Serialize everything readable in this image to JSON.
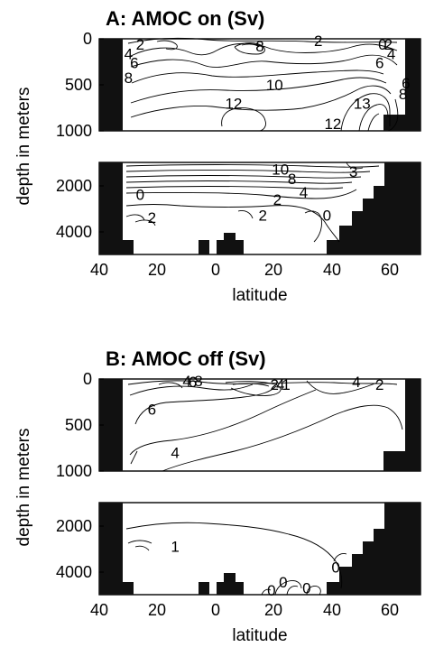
{
  "chart_data": [
    {
      "type": "contour",
      "title": "A: AMOC on (Sv)",
      "xlabel": "latitude",
      "ylabel": "depth in meters",
      "x_range": [
        -40,
        70
      ],
      "x_ticks": [
        "40",
        "20",
        "0",
        "20",
        "40",
        "60"
      ],
      "upper_depth_range": [
        0,
        1000
      ],
      "upper_ticks": [
        "0",
        "500",
        "1000"
      ],
      "lower_depth_range": [
        1000,
        5000
      ],
      "lower_ticks": [
        "2000",
        "4000"
      ],
      "contour_labels": [
        {
          "text": "2",
          "lat": -26,
          "depth": 60
        },
        {
          "text": "4",
          "lat": -30,
          "depth": 160
        },
        {
          "text": "6",
          "lat": -28,
          "depth": 260
        },
        {
          "text": "8",
          "lat": -30,
          "depth": 420
        },
        {
          "text": "8",
          "lat": 15,
          "depth": 80
        },
        {
          "text": "2",
          "lat": 35,
          "depth": 20
        },
        {
          "text": "0",
          "lat": 57,
          "depth": 60
        },
        {
          "text": "2",
          "lat": 59,
          "depth": 60
        },
        {
          "text": "4",
          "lat": 60,
          "depth": 160
        },
        {
          "text": "6",
          "lat": 56,
          "depth": 260
        },
        {
          "text": "10",
          "lat": 20,
          "depth": 500
        },
        {
          "text": "12",
          "lat": 6,
          "depth": 700
        },
        {
          "text": "13",
          "lat": 50,
          "depth": 700
        },
        {
          "text": "12",
          "lat": 40,
          "depth": 920
        },
        {
          "text": "8",
          "lat": 64,
          "depth": 600
        },
        {
          "text": "6",
          "lat": 65,
          "depth": 480
        },
        {
          "text": "10",
          "lat": 22,
          "depth": 1300
        },
        {
          "text": "8",
          "lat": 26,
          "depth": 1700
        },
        {
          "text": "4",
          "lat": 30,
          "depth": 2300
        },
        {
          "text": "2",
          "lat": 21,
          "depth": 2600
        },
        {
          "text": "0",
          "lat": -26,
          "depth": 2400
        },
        {
          "text": "2",
          "lat": -22,
          "depth": 3400
        },
        {
          "text": "2",
          "lat": 16,
          "depth": 3300
        },
        {
          "text": "0",
          "lat": 38,
          "depth": 3300
        },
        {
          "text": "3",
          "lat": 47,
          "depth": 1400
        }
      ]
    },
    {
      "type": "contour",
      "title": "B: AMOC off (Sv)",
      "xlabel": "latitude",
      "ylabel": "depth in meters",
      "x_range": [
        -40,
        70
      ],
      "x_ticks": [
        "40",
        "20",
        "0",
        "20",
        "40",
        "60"
      ],
      "upper_depth_range": [
        0,
        1000
      ],
      "upper_ticks": [
        "0",
        "500",
        "1000"
      ],
      "lower_depth_range": [
        1000,
        5000
      ],
      "lower_ticks": [
        "2000",
        "4000"
      ],
      "contour_labels": [
        {
          "text": "4",
          "lat": -10,
          "depth": 20
        },
        {
          "text": "6",
          "lat": -8,
          "depth": 30
        },
        {
          "text": "8",
          "lat": -6,
          "depth": 20
        },
        {
          "text": "2",
          "lat": 20,
          "depth": 60
        },
        {
          "text": "4",
          "lat": 22,
          "depth": 60
        },
        {
          "text": "1",
          "lat": 24,
          "depth": 60
        },
        {
          "text": "4",
          "lat": 48,
          "depth": 30
        },
        {
          "text": "2",
          "lat": 56,
          "depth": 60
        },
        {
          "text": "6",
          "lat": -22,
          "depth": 330
        },
        {
          "text": "4",
          "lat": -14,
          "depth": 800
        },
        {
          "text": "1",
          "lat": -14,
          "depth": 2900
        },
        {
          "text": "0",
          "lat": 41,
          "depth": 3800
        },
        {
          "text": "0",
          "lat": 23,
          "depth": 4450
        },
        {
          "text": "0",
          "lat": 31,
          "depth": 4700
        },
        {
          "text": "0",
          "lat": 19,
          "depth": 4800
        }
      ]
    }
  ]
}
